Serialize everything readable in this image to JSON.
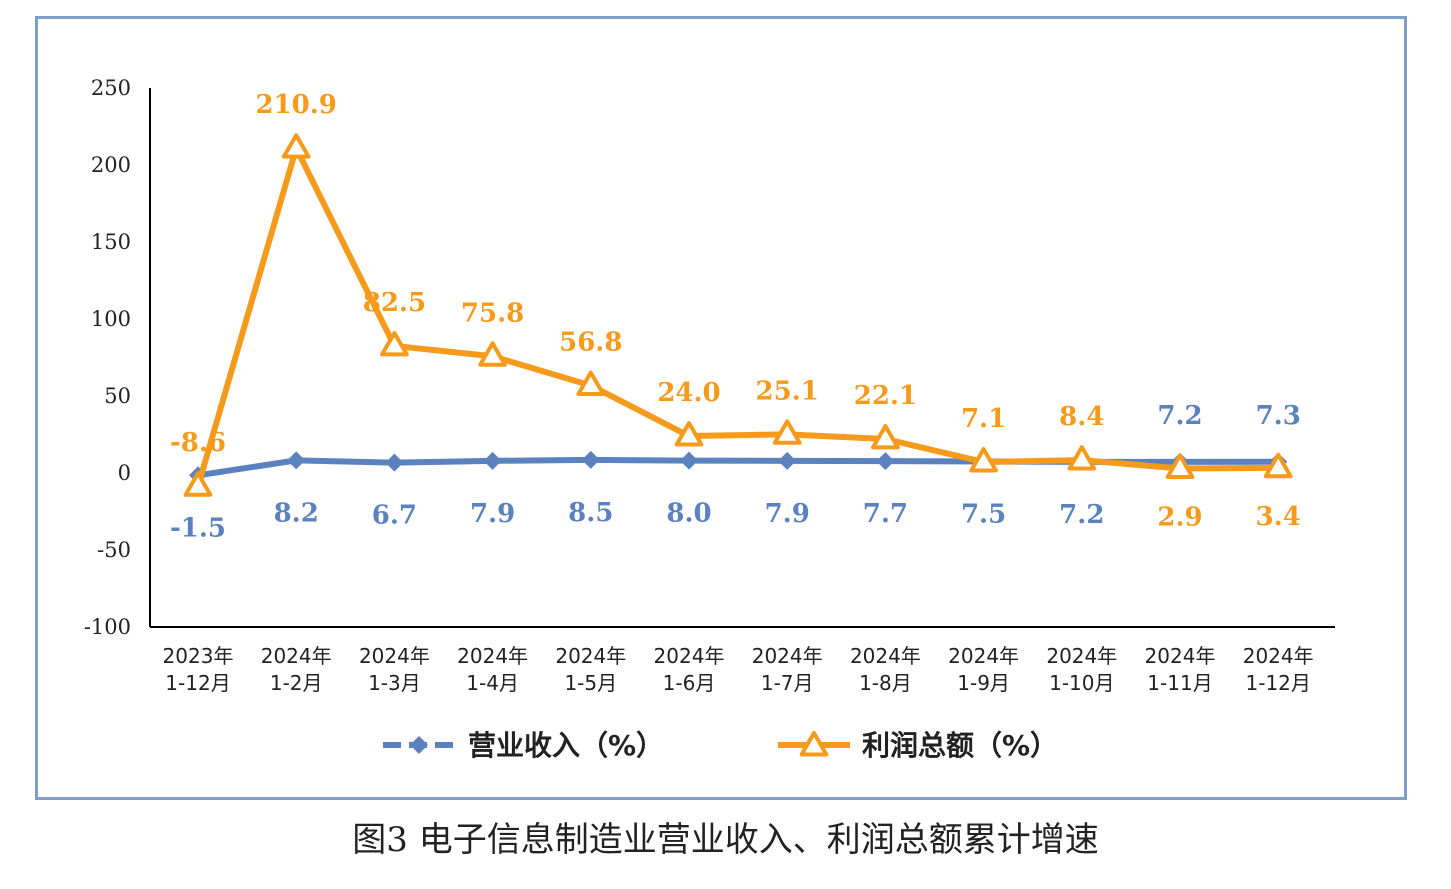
{
  "caption": "图3    电子信息制造业营业收入、利润总额累计增速",
  "colors": {
    "revenue": "#5b82bf",
    "profit": "#f59a1b",
    "frame": "#7f9fc9"
  },
  "chart_data": {
    "type": "line",
    "title": "图3    电子信息制造业营业收入、利润总额累计增速",
    "xlabel": "",
    "ylabel": "",
    "ylim": [
      -100,
      250
    ],
    "yticks": [
      250,
      200,
      150,
      100,
      50,
      0,
      -50,
      -100
    ],
    "categories": [
      [
        "2023年",
        "1-12月"
      ],
      [
        "2024年",
        "1-2月"
      ],
      [
        "2024年",
        "1-3月"
      ],
      [
        "2024年",
        "1-4月"
      ],
      [
        "2024年",
        "1-5月"
      ],
      [
        "2024年",
        "1-6月"
      ],
      [
        "2024年",
        "1-7月"
      ],
      [
        "2024年",
        "1-8月"
      ],
      [
        "2024年",
        "1-9月"
      ],
      [
        "2024年",
        "1-10月"
      ],
      [
        "2024年",
        "1-11月"
      ],
      [
        "2024年",
        "1-12月"
      ]
    ],
    "series": [
      {
        "name": "营业收入（%）",
        "marker": "diamond",
        "values": [
          -1.5,
          8.2,
          6.7,
          7.9,
          8.5,
          8.0,
          7.9,
          7.7,
          7.5,
          7.2,
          7.2,
          7.3
        ],
        "labels": [
          "-1.5",
          "8.2",
          "6.7",
          "7.9",
          "8.5",
          "8.0",
          "7.9",
          "7.7",
          "7.5",
          "7.2",
          "7.2",
          "7.3"
        ],
        "label_pos": [
          "below",
          "below",
          "below",
          "below",
          "below",
          "below",
          "below",
          "below",
          "below",
          "below",
          "above",
          "above"
        ]
      },
      {
        "name": "利润总额（%）",
        "marker": "triangle",
        "values": [
          -8.6,
          210.9,
          82.5,
          75.8,
          56.8,
          24.0,
          25.1,
          22.1,
          7.1,
          8.4,
          2.9,
          3.4
        ],
        "labels": [
          "-8.6",
          "210.9",
          "82.5",
          "75.8",
          "56.8",
          "24.0",
          "25.1",
          "22.1",
          "7.1",
          "8.4",
          "2.9",
          "3.4"
        ],
        "label_pos": [
          "above",
          "above",
          "above",
          "above",
          "above",
          "above",
          "above",
          "above",
          "above",
          "above",
          "below",
          "below"
        ]
      }
    ],
    "legend": "bottom"
  }
}
